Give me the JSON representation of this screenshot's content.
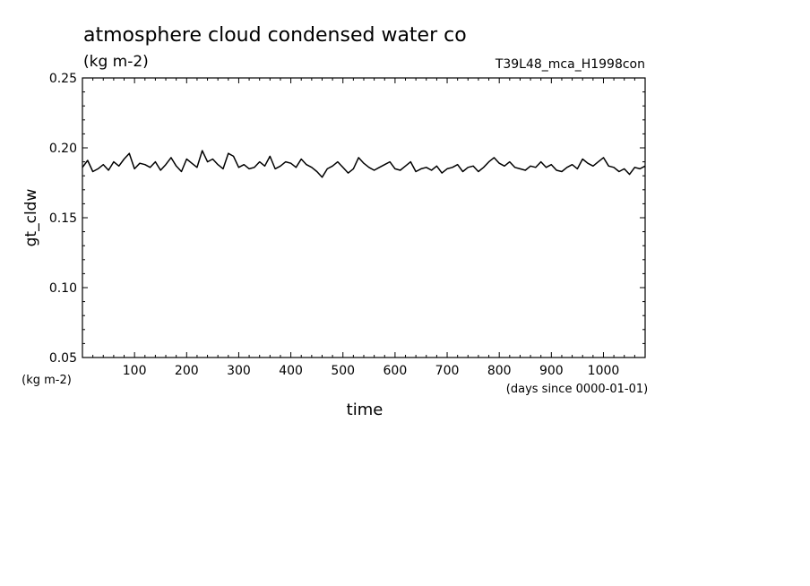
{
  "chart_data": {
    "type": "line",
    "title": "atmosphere cloud condensed water co",
    "subtitle": "(kg m-2)",
    "run_label": "T39L48_mca_H1998con",
    "ylabel": "gt_cldw",
    "y_unit": "(kg m-2)",
    "xlabel": "time",
    "x_unit": "(days since 0000-01-01)",
    "xlim": [
      0,
      1080
    ],
    "ylim": [
      0.05,
      0.25
    ],
    "x_ticks": [
      100,
      200,
      300,
      400,
      500,
      600,
      700,
      800,
      900,
      1000
    ],
    "x_tick_labels": [
      "100",
      "200",
      "300",
      "400",
      "500",
      "600",
      "700",
      "800",
      "900",
      "1000"
    ],
    "y_ticks": [
      0.05,
      0.1,
      0.15,
      0.2,
      0.25
    ],
    "y_tick_labels": [
      "0.05",
      "0.10",
      "0.15",
      "0.20",
      "0.25"
    ],
    "grid": false,
    "line_color": "#000000",
    "series": [
      {
        "x": [
          0,
          10,
          20,
          30,
          40,
          50,
          60,
          70,
          80,
          90,
          100,
          110,
          120,
          130,
          140,
          150,
          160,
          170,
          180,
          190,
          200,
          210,
          220,
          230,
          240,
          250,
          260,
          270,
          280,
          290,
          300,
          310,
          320,
          330,
          340,
          350,
          360,
          370,
          380,
          390,
          400,
          410,
          420,
          430,
          440,
          450,
          460,
          470,
          480,
          490,
          500,
          510,
          520,
          530,
          540,
          550,
          560,
          570,
          580,
          590,
          600,
          610,
          620,
          630,
          640,
          650,
          660,
          670,
          680,
          690,
          700,
          710,
          720,
          730,
          740,
          750,
          760,
          770,
          780,
          790,
          800,
          810,
          820,
          830,
          840,
          850,
          860,
          870,
          880,
          890,
          900,
          910,
          920,
          930,
          940,
          950,
          960,
          970,
          980,
          990,
          1000,
          1010,
          1020,
          1030,
          1040,
          1050,
          1060,
          1070,
          1080
        ],
        "values": [
          0.186,
          0.191,
          0.183,
          0.185,
          0.188,
          0.184,
          0.19,
          0.187,
          0.192,
          0.196,
          0.185,
          0.189,
          0.188,
          0.186,
          0.19,
          0.184,
          0.188,
          0.193,
          0.187,
          0.183,
          0.192,
          0.189,
          0.186,
          0.198,
          0.19,
          0.192,
          0.188,
          0.185,
          0.196,
          0.194,
          0.186,
          0.188,
          0.185,
          0.186,
          0.19,
          0.187,
          0.194,
          0.185,
          0.187,
          0.19,
          0.189,
          0.186,
          0.192,
          0.188,
          0.186,
          0.183,
          0.179,
          0.185,
          0.187,
          0.19,
          0.186,
          0.182,
          0.185,
          0.193,
          0.189,
          0.186,
          0.184,
          0.186,
          0.188,
          0.19,
          0.185,
          0.184,
          0.187,
          0.19,
          0.183,
          0.185,
          0.186,
          0.184,
          0.187,
          0.182,
          0.185,
          0.186,
          0.188,
          0.183,
          0.186,
          0.187,
          0.183,
          0.186,
          0.19,
          0.193,
          0.189,
          0.187,
          0.19,
          0.186,
          0.185,
          0.184,
          0.187,
          0.186,
          0.19,
          0.186,
          0.188,
          0.184,
          0.183,
          0.186,
          0.188,
          0.185,
          0.192,
          0.189,
          0.187,
          0.19,
          0.193,
          0.187,
          0.186,
          0.183,
          0.185,
          0.181,
          0.186,
          0.185,
          0.187
        ]
      }
    ]
  }
}
